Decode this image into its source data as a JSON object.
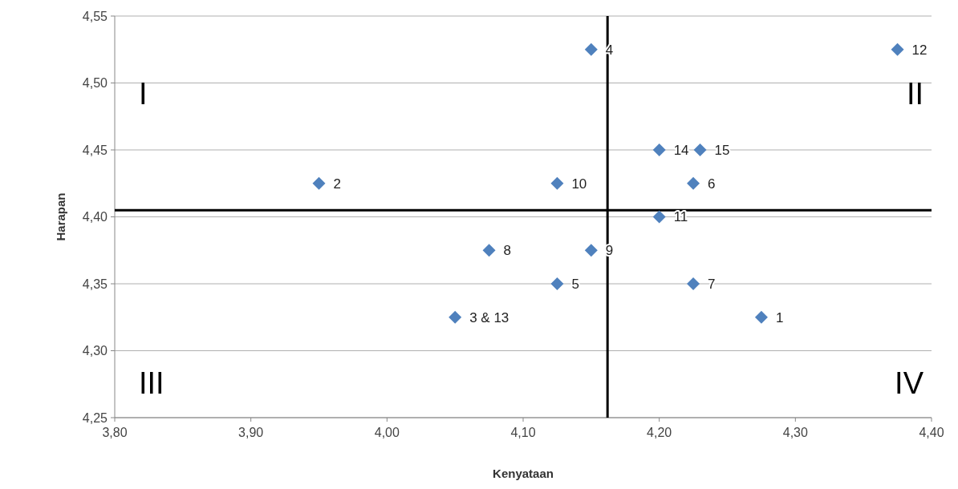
{
  "chart_data": {
    "type": "scatter",
    "xlabel": "Kenyataan",
    "ylabel": "Harapan",
    "series": [
      {
        "color": "#4f81bd",
        "x": [
          4.275,
          3.95,
          4.05,
          4.15,
          4.125,
          4.225,
          4.225,
          4.075,
          4.15,
          4.125,
          4.2,
          4.375,
          4.2,
          4.23
        ],
        "values": [
          4.325,
          4.425,
          4.325,
          4.525,
          4.35,
          4.425,
          4.35,
          4.375,
          4.375,
          4.425,
          4.4,
          4.525,
          4.45,
          4.45
        ]
      }
    ],
    "marker": "diamond",
    "xlim": [
      3.8,
      4.4
    ],
    "xticks": [
      {
        "value": 3.8,
        "label": "3,80"
      },
      {
        "value": 3.9,
        "label": "3,90"
      },
      {
        "value": 4.0,
        "label": "4,00"
      },
      {
        "value": 4.1,
        "label": "4,10"
      },
      {
        "value": 4.2,
        "label": "4,20"
      },
      {
        "value": 4.3,
        "label": "4,30"
      },
      {
        "value": 4.4,
        "label": "4,40"
      }
    ],
    "ylim": [
      4.25,
      4.55
    ],
    "yticks": [
      {
        "value": 4.25,
        "label": "4,25"
      },
      {
        "value": 4.3,
        "label": "4,30"
      },
      {
        "value": 4.35,
        "label": "4,35"
      },
      {
        "value": 4.4,
        "label": "4,40"
      },
      {
        "value": 4.45,
        "label": "4,45"
      },
      {
        "value": 4.5,
        "label": "4,50"
      },
      {
        "value": 4.55,
        "label": "4,55"
      }
    ],
    "grid": "y",
    "ref_lines": [
      {
        "axis": "x",
        "value": 4.162,
        "color": "#000000"
      },
      {
        "axis": "y",
        "value": 4.405,
        "color": "#000000"
      }
    ],
    "annotations": [
      "I",
      "II",
      "III",
      "IV",
      {
        "text": "1",
        "x": 4.275,
        "y": 4.325
      },
      {
        "text": "2",
        "x": 3.95,
        "y": 4.425
      },
      {
        "text": "3 & 13",
        "x": 4.05,
        "y": 4.325
      },
      {
        "text": "4",
        "x": 4.15,
        "y": 4.525
      },
      {
        "text": "5",
        "x": 4.125,
        "y": 4.35
      },
      {
        "text": "6",
        "x": 4.225,
        "y": 4.425
      },
      {
        "text": "7",
        "x": 4.225,
        "y": 4.35
      },
      {
        "text": "8",
        "x": 4.075,
        "y": 4.375
      },
      {
        "text": "9",
        "x": 4.15,
        "y": 4.375
      },
      {
        "text": "10",
        "x": 4.125,
        "y": 4.425
      },
      {
        "text": "11",
        "x": 4.2,
        "y": 4.4
      },
      {
        "text": "12",
        "x": 4.375,
        "y": 4.525
      },
      {
        "text": "14",
        "x": 4.2,
        "y": 4.45
      },
      {
        "text": "15",
        "x": 4.23,
        "y": 4.45
      }
    ]
  }
}
